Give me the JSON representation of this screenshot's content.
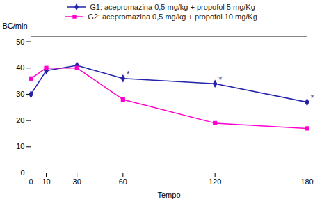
{
  "chart_data": {
    "type": "line",
    "xlabel": "Tempo",
    "ylabel": "BC/min",
    "x": [
      0,
      10,
      30,
      60,
      120,
      180
    ],
    "series": [
      {
        "name": "G1: acepromazina 0,5 mg/kg + propofol 5 mg/Kg",
        "color": "#2222aa",
        "marker": "diamond",
        "values": [
          30,
          39,
          41,
          36,
          34,
          27
        ]
      },
      {
        "name": "G2: acepromazina 0,5 mg/kg + propofol 10 mg/Kg",
        "color": "#ff00cc",
        "marker": "square",
        "values": [
          36,
          40,
          40,
          28,
          19,
          17
        ]
      }
    ],
    "xlim": [
      0,
      180
    ],
    "xticks": [
      0,
      10,
      30,
      60,
      120,
      180
    ],
    "ylim": [
      0,
      52
    ],
    "yticks": [
      0,
      10,
      20,
      30,
      40,
      50
    ],
    "grid": false,
    "legend": "top",
    "annotations": [
      {
        "text": "*",
        "x": 60,
        "y": 36,
        "color": "#444488"
      },
      {
        "text": "*",
        "x": 120,
        "y": 34,
        "color": "#444488"
      },
      {
        "text": "*",
        "x": 180,
        "y": 27,
        "color": "#444488"
      }
    ]
  }
}
